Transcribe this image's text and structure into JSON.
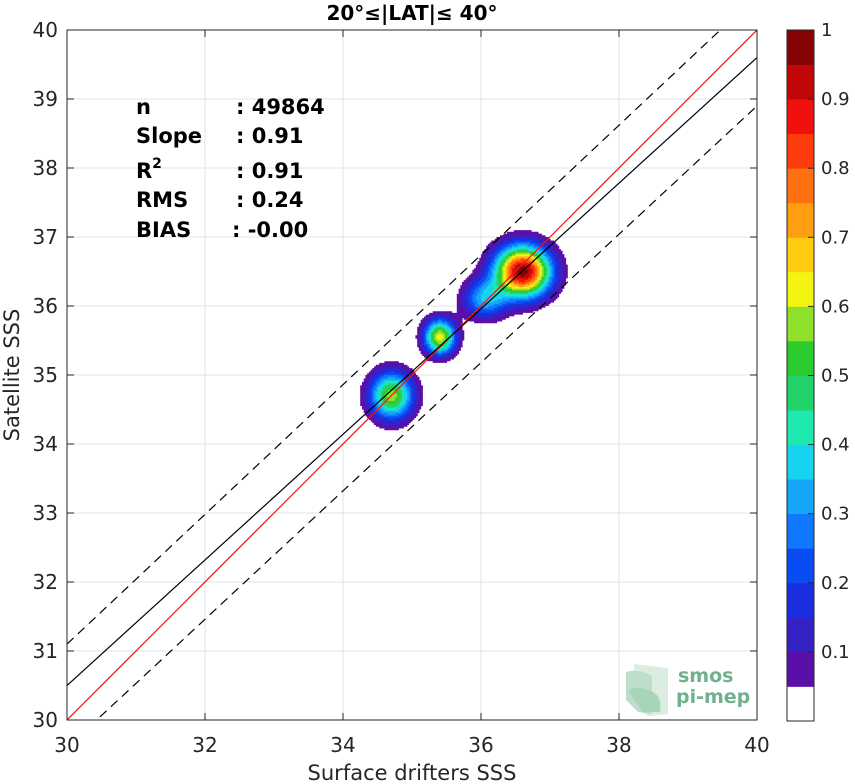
{
  "chart_data": {
    "type": "scatter",
    "title": "20°≤|LAT|≤ 40°",
    "xlabel": "Surface drifters SSS",
    "ylabel": "Satellite SSS",
    "xlim": [
      30,
      40
    ],
    "ylim": [
      30,
      40
    ],
    "xticks": [
      "30",
      "32",
      "34",
      "36",
      "38",
      "40"
    ],
    "yticks": [
      "30",
      "31",
      "32",
      "33",
      "34",
      "35",
      "36",
      "37",
      "38",
      "39",
      "40"
    ],
    "grid": true,
    "stats": [
      {
        "label": "n",
        "value": ": 49864"
      },
      {
        "label": "Slope",
        "value": ": 0.91"
      },
      {
        "label": "R",
        "sup": "2",
        "value": ": 0.91"
      },
      {
        "label": "RMS",
        "value": ": 0.24"
      },
      {
        "label": "BIAS",
        "value": ": -0.00"
      }
    ],
    "lines": [
      {
        "kind": "one-to-one",
        "color": "#e41a1c",
        "x": [
          30,
          40
        ],
        "y": [
          30,
          40
        ]
      },
      {
        "kind": "regression",
        "color": "#000000",
        "x": [
          30,
          40
        ],
        "y": [
          30.5,
          39.6
        ]
      },
      {
        "kind": "upper-bound",
        "color": "#000000",
        "dashed": true,
        "x": [
          30,
          40
        ],
        "y": [
          31.1,
          40.5
        ]
      },
      {
        "kind": "lower-bound",
        "color": "#000000",
        "dashed": true,
        "x": [
          30,
          40
        ],
        "y": [
          29.6,
          38.9
        ]
      }
    ],
    "density_peaks": [
      {
        "x": 34.7,
        "y": 34.7,
        "sx": 0.22,
        "sy": 0.24,
        "amp": 0.6
      },
      {
        "x": 35.4,
        "y": 35.55,
        "sx": 0.16,
        "sy": 0.18,
        "amp": 0.65
      },
      {
        "x": 36.6,
        "y": 36.5,
        "sx": 0.28,
        "sy": 0.26,
        "amp": 1.0
      },
      {
        "x": 36.05,
        "y": 36.1,
        "sx": 0.22,
        "sy": 0.2,
        "amp": 0.35
      }
    ],
    "colorbar": {
      "ticks": [
        "0.1",
        "0.2",
        "0.3",
        "0.4",
        "0.5",
        "0.6",
        "0.7",
        "0.8",
        "0.9",
        "1"
      ],
      "range": [
        0,
        1
      ],
      "colors": [
        "#ffffff",
        "#5a0fa8",
        "#3522c4",
        "#1c2fe0",
        "#0a4cf4",
        "#0f78ff",
        "#16a6f7",
        "#16d4f0",
        "#1ee8b0",
        "#22d36a",
        "#2ccc2e",
        "#8fe02a",
        "#f4f413",
        "#ffcc12",
        "#ff9e10",
        "#ff7010",
        "#ff3c0c",
        "#f0100c",
        "#c10607",
        "#850304"
      ]
    },
    "logo": {
      "line1": "smos",
      "line2": "pi-mep"
    }
  }
}
